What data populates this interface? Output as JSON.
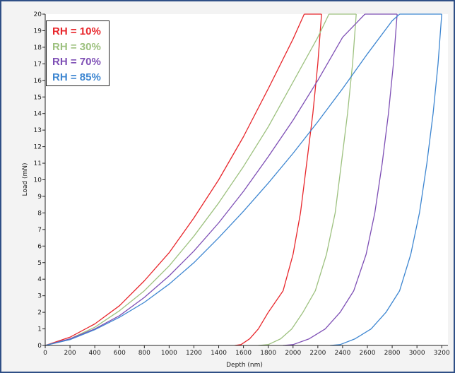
{
  "chart_data": {
    "type": "line",
    "xlabel": "Depth (nm)",
    "ylabel": "Load (mN)",
    "xlim": [
      0,
      3250
    ],
    "ylim": [
      0,
      20
    ],
    "x_ticks": [
      "0",
      "200",
      "400",
      "600",
      "800",
      "1000",
      "1200",
      "1400",
      "1600",
      "1800",
      "2000",
      "2200",
      "2400",
      "2600",
      "2800",
      "3000",
      "3200"
    ],
    "y_ticks": [
      "0",
      "1",
      "2",
      "3",
      "4",
      "5",
      "6",
      "7",
      "8",
      "9",
      "10",
      "11",
      "12",
      "13",
      "14",
      "15",
      "16",
      "17",
      "18",
      "19",
      "20"
    ],
    "grid": false,
    "legend_position": "top-left",
    "series": [
      {
        "name": "RH = 10%",
        "color": "#e8262b",
        "loading": [
          [
            0,
            0
          ],
          [
            200,
            0.5
          ],
          [
            400,
            1.3
          ],
          [
            600,
            2.4
          ],
          [
            800,
            3.9
          ],
          [
            1000,
            5.6
          ],
          [
            1200,
            7.7
          ],
          [
            1400,
            10.0
          ],
          [
            1600,
            12.6
          ],
          [
            1800,
            15.5
          ],
          [
            2000,
            18.5
          ],
          [
            2090,
            20
          ]
        ],
        "hold": [
          [
            2090,
            20
          ],
          [
            2230,
            20
          ]
        ],
        "unloading": [
          [
            2230,
            20
          ],
          [
            2200,
            17
          ],
          [
            2160,
            14
          ],
          [
            2110,
            11
          ],
          [
            2060,
            8
          ],
          [
            2000,
            5.5
          ],
          [
            1920,
            3.3
          ],
          [
            1800,
            2.0
          ],
          [
            1720,
            1.0
          ],
          [
            1650,
            0.4
          ],
          [
            1580,
            0.05
          ],
          [
            1530,
            0
          ]
        ]
      },
      {
        "name": "RH = 30%",
        "color": "#9dc17f",
        "loading": [
          [
            0,
            0
          ],
          [
            200,
            0.4
          ],
          [
            400,
            1.1
          ],
          [
            600,
            2.1
          ],
          [
            800,
            3.3
          ],
          [
            1000,
            4.8
          ],
          [
            1200,
            6.6
          ],
          [
            1400,
            8.6
          ],
          [
            1600,
            10.8
          ],
          [
            1800,
            13.2
          ],
          [
            2000,
            15.9
          ],
          [
            2200,
            18.6
          ],
          [
            2290,
            20
          ]
        ],
        "hold": [
          [
            2290,
            20
          ],
          [
            2510,
            20
          ]
        ],
        "unloading": [
          [
            2510,
            20
          ],
          [
            2480,
            17
          ],
          [
            2440,
            14
          ],
          [
            2390,
            11
          ],
          [
            2340,
            8
          ],
          [
            2270,
            5.5
          ],
          [
            2180,
            3.3
          ],
          [
            2080,
            2.0
          ],
          [
            1990,
            1.0
          ],
          [
            1900,
            0.4
          ],
          [
            1800,
            0.05
          ],
          [
            1720,
            0
          ]
        ]
      },
      {
        "name": "RH = 70%",
        "color": "#7e4fb5",
        "loading": [
          [
            0,
            0
          ],
          [
            200,
            0.4
          ],
          [
            400,
            1.0
          ],
          [
            600,
            1.8
          ],
          [
            800,
            2.9
          ],
          [
            1000,
            4.2
          ],
          [
            1200,
            5.7
          ],
          [
            1400,
            7.4
          ],
          [
            1600,
            9.3
          ],
          [
            1800,
            11.4
          ],
          [
            2000,
            13.6
          ],
          [
            2200,
            16.0
          ],
          [
            2400,
            18.6
          ],
          [
            2580,
            20
          ]
        ],
        "hold": [
          [
            2580,
            20
          ],
          [
            2840,
            20
          ]
        ],
        "unloading": [
          [
            2840,
            20
          ],
          [
            2810,
            17
          ],
          [
            2770,
            14
          ],
          [
            2720,
            11
          ],
          [
            2660,
            8
          ],
          [
            2590,
            5.5
          ],
          [
            2490,
            3.3
          ],
          [
            2380,
            2.0
          ],
          [
            2260,
            1.0
          ],
          [
            2130,
            0.4
          ],
          [
            2000,
            0.05
          ],
          [
            1920,
            0
          ]
        ]
      },
      {
        "name": "RH = 85%",
        "color": "#3d86d1",
        "loading": [
          [
            0,
            0
          ],
          [
            200,
            0.35
          ],
          [
            400,
            0.95
          ],
          [
            600,
            1.7
          ],
          [
            800,
            2.6
          ],
          [
            1000,
            3.7
          ],
          [
            1200,
            5.0
          ],
          [
            1400,
            6.5
          ],
          [
            1600,
            8.1
          ],
          [
            1800,
            9.8
          ],
          [
            2000,
            11.6
          ],
          [
            2200,
            13.5
          ],
          [
            2400,
            15.5
          ],
          [
            2600,
            17.6
          ],
          [
            2800,
            19.6
          ],
          [
            2860,
            20
          ]
        ],
        "hold": [
          [
            2860,
            20
          ],
          [
            3200,
            20
          ]
        ],
        "unloading": [
          [
            3200,
            20
          ],
          [
            3170,
            17
          ],
          [
            3130,
            14
          ],
          [
            3080,
            11
          ],
          [
            3020,
            8
          ],
          [
            2950,
            5.5
          ],
          [
            2860,
            3.3
          ],
          [
            2750,
            2.0
          ],
          [
            2630,
            1.0
          ],
          [
            2500,
            0.4
          ],
          [
            2380,
            0.05
          ],
          [
            2300,
            0
          ]
        ]
      }
    ]
  }
}
